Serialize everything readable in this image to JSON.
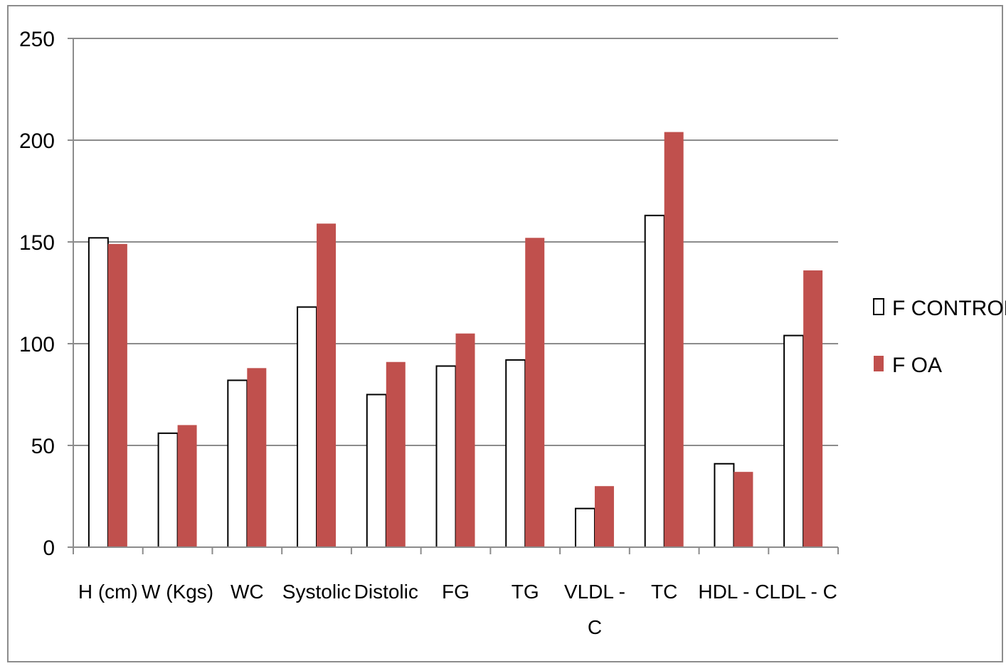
{
  "chart_data": {
    "type": "bar",
    "title": "",
    "xlabel": "",
    "ylabel": "",
    "ylim": [
      0,
      250
    ],
    "yticks": [
      0,
      50,
      100,
      150,
      200,
      250
    ],
    "grid": true,
    "legend_position": "right",
    "categories": [
      "H (cm)",
      "W (Kgs)",
      "WC",
      "Systolic",
      "Distolic",
      "FG",
      "TG",
      "VLDL - C",
      "TC",
      "HDL - C",
      "LDL - C"
    ],
    "series": [
      {
        "name": "F CONTROL",
        "color": "#ffffff",
        "stroke": "#000000",
        "values": [
          152,
          56,
          82,
          118,
          75,
          89,
          92,
          19,
          163,
          41,
          104
        ]
      },
      {
        "name": "F OA",
        "color": "#c0504d",
        "stroke": "#c0504d",
        "values": [
          149,
          60,
          88,
          159,
          91,
          105,
          152,
          30,
          204,
          37,
          136
        ]
      }
    ]
  }
}
